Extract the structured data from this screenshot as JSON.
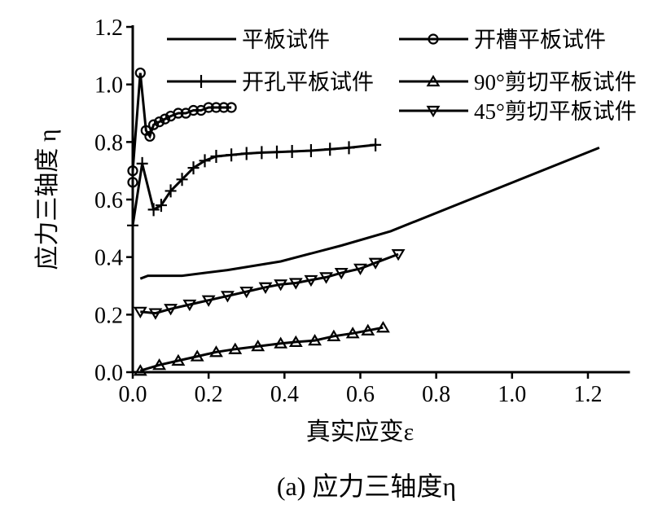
{
  "chart_data": {
    "type": "line",
    "title": "",
    "caption": "(a) 应力三轴度η",
    "xlabel": "真实应变ε",
    "ylabel": "应力三轴度 η",
    "xlim": [
      0,
      1.3
    ],
    "ylim": [
      0,
      1.2
    ],
    "xticks": [
      "0.0",
      "0.2",
      "0.4",
      "0.6",
      "0.8",
      "1.0",
      "1.2"
    ],
    "yticks": [
      "0.0",
      "0.2",
      "0.4",
      "0.6",
      "0.8",
      "1.0",
      "1.2"
    ],
    "grid": false,
    "legend_position": "top",
    "series": [
      {
        "name": "平板试件",
        "marker": "none",
        "x": [
          0.02,
          0.04,
          0.13,
          0.25,
          0.39,
          0.55,
          0.68,
          1.23
        ],
        "y": [
          0.325,
          0.335,
          0.335,
          0.355,
          0.385,
          0.44,
          0.49,
          0.78
        ]
      },
      {
        "name": "开槽平板试件",
        "marker": "circle",
        "x": [
          0.0,
          0.0,
          0.02,
          0.035,
          0.045,
          0.055,
          0.07,
          0.085,
          0.1,
          0.12,
          0.14,
          0.16,
          0.18,
          0.2,
          0.22,
          0.24,
          0.26
        ],
        "y": [
          0.66,
          0.7,
          1.04,
          0.84,
          0.82,
          0.86,
          0.87,
          0.88,
          0.89,
          0.9,
          0.9,
          0.91,
          0.91,
          0.92,
          0.92,
          0.92,
          0.92
        ]
      },
      {
        "name": "开孔平板试件",
        "marker": "plus",
        "x": [
          0.0,
          0.025,
          0.055,
          0.075,
          0.1,
          0.13,
          0.16,
          0.19,
          0.22,
          0.26,
          0.3,
          0.34,
          0.38,
          0.42,
          0.47,
          0.52,
          0.57,
          0.64
        ],
        "y": [
          0.51,
          0.725,
          0.565,
          0.58,
          0.63,
          0.67,
          0.71,
          0.735,
          0.75,
          0.755,
          0.76,
          0.763,
          0.765,
          0.767,
          0.77,
          0.775,
          0.78,
          0.79
        ]
      },
      {
        "name": "90°剪切平板试件",
        "marker": "triangle-up",
        "x": [
          0.02,
          0.07,
          0.12,
          0.17,
          0.22,
          0.27,
          0.33,
          0.39,
          0.43,
          0.48,
          0.53,
          0.58,
          0.62,
          0.66
        ],
        "y": [
          0.005,
          0.025,
          0.04,
          0.055,
          0.07,
          0.08,
          0.09,
          0.1,
          0.105,
          0.11,
          0.125,
          0.135,
          0.145,
          0.155
        ]
      },
      {
        "name": "45°剪切平板试件",
        "marker": "triangle-down",
        "x": [
          0.02,
          0.06,
          0.1,
          0.15,
          0.2,
          0.25,
          0.3,
          0.35,
          0.39,
          0.43,
          0.47,
          0.51,
          0.55,
          0.6,
          0.64,
          0.7
        ],
        "y": [
          0.21,
          0.205,
          0.22,
          0.235,
          0.25,
          0.265,
          0.28,
          0.295,
          0.305,
          0.31,
          0.32,
          0.33,
          0.345,
          0.36,
          0.38,
          0.41
        ]
      }
    ]
  }
}
